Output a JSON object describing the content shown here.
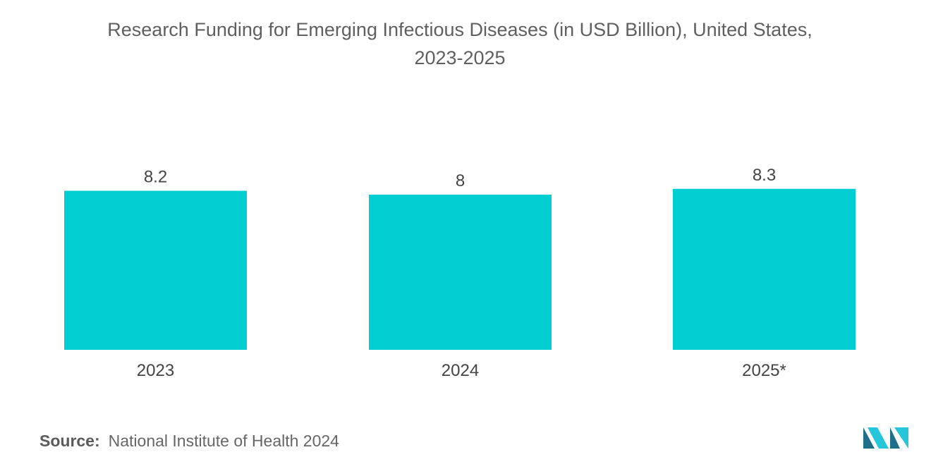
{
  "chart_data": {
    "type": "bar",
    "title": "Research Funding for Emerging Infectious Diseases (in USD Billion), United States,",
    "subtitle": "2023-2025",
    "categories": [
      "2023",
      "2024",
      "2025*"
    ],
    "values": [
      8.2,
      8,
      8.3
    ],
    "value_labels": [
      "8.2",
      "8",
      "8.3"
    ],
    "xlabel": "",
    "ylabel": "",
    "ylim": [
      0,
      8.3
    ],
    "grid": false,
    "legend": "none",
    "bar_color": "#00ced1"
  },
  "source": {
    "label": "Source:",
    "text": "National Institute of Health 2024"
  },
  "colors": {
    "bar": "#00ced1",
    "logo_dark": "#1f6f8b",
    "logo_light": "#26c6da"
  }
}
